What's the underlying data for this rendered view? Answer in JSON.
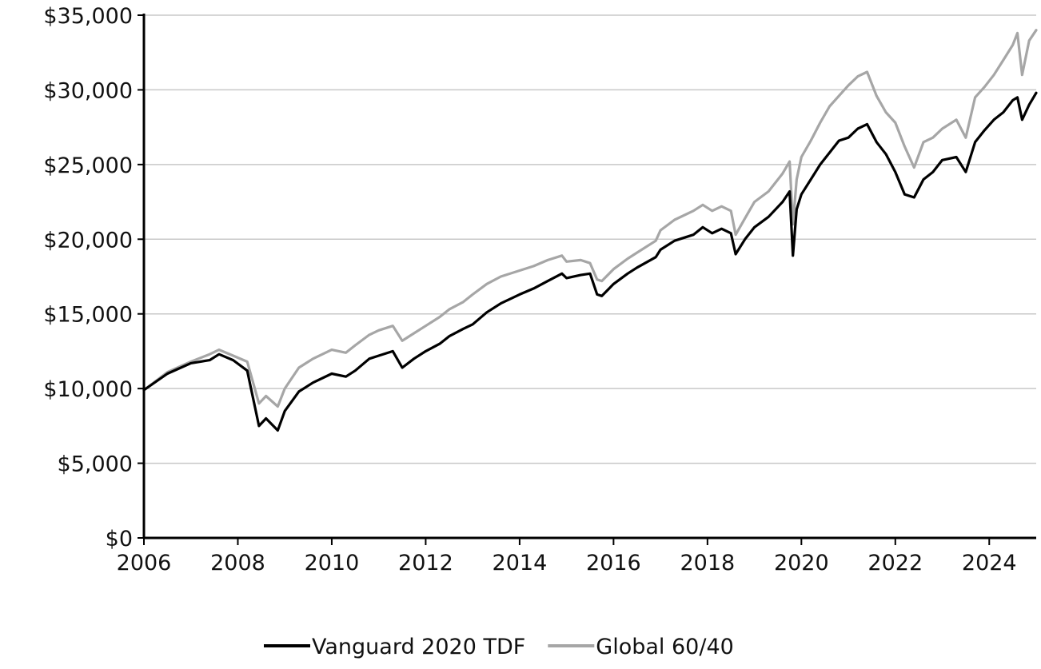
{
  "chart_data": {
    "type": "line",
    "title": "",
    "xlabel": "",
    "ylabel": "",
    "x_ticks": [
      "2006",
      "2008",
      "2010",
      "2012",
      "2014",
      "2016",
      "2018",
      "2020",
      "2022",
      "2024"
    ],
    "y_ticks": [
      "$0",
      "$5,000",
      "$10,000",
      "$15,000",
      "$20,000",
      "$25,000",
      "$30,000",
      "$35,000"
    ],
    "xlim": [
      2006.0,
      2025.0
    ],
    "ylim": [
      0,
      35000
    ],
    "grid": "horizontal",
    "legend_position": "bottom",
    "series": [
      {
        "name": "Vanguard 2020 TDF",
        "color": "#000000",
        "x": [
          2006.0,
          2006.5,
          2007.0,
          2007.4,
          2007.6,
          2007.9,
          2008.2,
          2008.45,
          2008.6,
          2008.85,
          2009.0,
          2009.3,
          2009.6,
          2010.0,
          2010.3,
          2010.5,
          2010.8,
          2011.0,
          2011.3,
          2011.5,
          2011.75,
          2012.0,
          2012.3,
          2012.5,
          2012.8,
          2013.0,
          2013.3,
          2013.6,
          2014.0,
          2014.3,
          2014.6,
          2014.9,
          2015.0,
          2015.3,
          2015.5,
          2015.65,
          2015.75,
          2016.0,
          2016.3,
          2016.5,
          2016.9,
          2017.0,
          2017.3,
          2017.7,
          2017.9,
          2018.1,
          2018.3,
          2018.5,
          2018.6,
          2018.8,
          2019.0,
          2019.3,
          2019.6,
          2019.75,
          2019.82,
          2019.9,
          2020.0,
          2020.2,
          2020.4,
          2020.6,
          2020.8,
          2021.0,
          2021.2,
          2021.4,
          2021.6,
          2021.8,
          2022.0,
          2022.2,
          2022.4,
          2022.6,
          2022.8,
          2023.0,
          2023.3,
          2023.5,
          2023.7,
          2023.9,
          2024.1,
          2024.3,
          2024.5,
          2024.6,
          2024.7,
          2024.85,
          2025.0
        ],
        "values": [
          9900,
          11000,
          11700,
          11900,
          12300,
          11900,
          11200,
          7500,
          8000,
          7200,
          8500,
          9800,
          10400,
          11000,
          10800,
          11200,
          12000,
          12200,
          12500,
          11400,
          12000,
          12500,
          13000,
          13500,
          14000,
          14300,
          15100,
          15700,
          16300,
          16700,
          17200,
          17700,
          17400,
          17600,
          17700,
          16300,
          16200,
          17000,
          17700,
          18100,
          18800,
          19300,
          19900,
          20300,
          20800,
          20400,
          20700,
          20400,
          19000,
          20000,
          20800,
          21500,
          22500,
          23200,
          18900,
          22000,
          23000,
          24000,
          25000,
          25800,
          26600,
          26800,
          27400,
          27700,
          26500,
          25700,
          24500,
          23000,
          22800,
          24000,
          24500,
          25300,
          25500,
          24500,
          26500,
          27300,
          28000,
          28500,
          29300,
          29500,
          28000,
          29000,
          29800
        ]
      },
      {
        "name": "Global 60/40",
        "color": "#a6a6a6",
        "x": [
          2006.0,
          2006.5,
          2007.0,
          2007.4,
          2007.6,
          2007.9,
          2008.2,
          2008.45,
          2008.6,
          2008.85,
          2009.0,
          2009.3,
          2009.6,
          2010.0,
          2010.3,
          2010.5,
          2010.8,
          2011.0,
          2011.3,
          2011.5,
          2011.75,
          2012.0,
          2012.3,
          2012.5,
          2012.8,
          2013.0,
          2013.3,
          2013.6,
          2014.0,
          2014.3,
          2014.6,
          2014.9,
          2015.0,
          2015.3,
          2015.5,
          2015.65,
          2015.75,
          2016.0,
          2016.3,
          2016.5,
          2016.9,
          2017.0,
          2017.3,
          2017.7,
          2017.9,
          2018.1,
          2018.3,
          2018.5,
          2018.6,
          2018.8,
          2019.0,
          2019.3,
          2019.6,
          2019.75,
          2019.82,
          2019.9,
          2020.0,
          2020.2,
          2020.4,
          2020.6,
          2020.8,
          2021.0,
          2021.2,
          2021.4,
          2021.6,
          2021.8,
          2022.0,
          2022.2,
          2022.4,
          2022.6,
          2022.8,
          2023.0,
          2023.3,
          2023.5,
          2023.7,
          2023.9,
          2024.1,
          2024.3,
          2024.5,
          2024.6,
          2024.7,
          2024.85,
          2025.0
        ],
        "values": [
          9900,
          11100,
          11800,
          12300,
          12600,
          12200,
          11800,
          9000,
          9500,
          8800,
          10000,
          11400,
          12000,
          12600,
          12400,
          12900,
          13600,
          13900,
          14200,
          13200,
          13700,
          14200,
          14800,
          15300,
          15800,
          16300,
          17000,
          17500,
          17900,
          18200,
          18600,
          18900,
          18500,
          18600,
          18400,
          17300,
          17200,
          18000,
          18700,
          19100,
          19900,
          20600,
          21300,
          21900,
          22300,
          21900,
          22200,
          21900,
          20300,
          21400,
          22500,
          23200,
          24400,
          25200,
          21000,
          24000,
          25500,
          26600,
          27800,
          28900,
          29600,
          30300,
          30900,
          31200,
          29600,
          28500,
          27800,
          26200,
          24800,
          26500,
          26800,
          27400,
          28000,
          26800,
          29500,
          30200,
          31000,
          32000,
          33000,
          33800,
          31000,
          33300,
          34000
        ]
      }
    ]
  }
}
